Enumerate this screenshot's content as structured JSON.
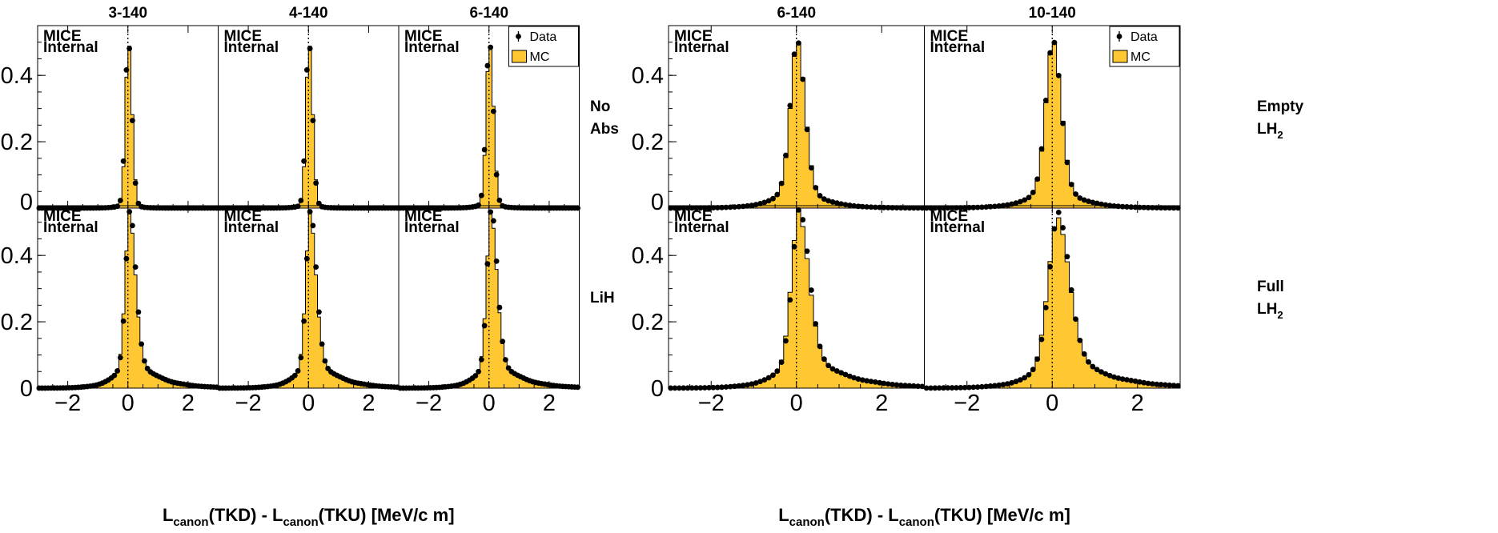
{
  "chart_data": {
    "type": "bar",
    "xlabel": {
      "left_part1": "L",
      "left_sub": "canon",
      "left_part2": "(TKD) - L",
      "right_sub": "canon",
      "right_part2": "(TKU) [MeV/c m]"
    },
    "xlim": [
      -3,
      3
    ],
    "ylim": [
      0,
      0.55
    ],
    "xticks": [
      -2,
      0,
      2
    ],
    "xtick_labels": [
      "−2",
      "0",
      "2"
    ],
    "yticks": [
      0,
      0.2,
      0.4
    ],
    "ytick_labels": [
      "0",
      "0.2",
      "0.4"
    ],
    "watermark": [
      "MICE",
      "Internal"
    ],
    "legend": {
      "data_label": "Data",
      "mc_label": "MC",
      "placement": "top-right"
    },
    "colors": {
      "mc_fill": "#ffc832",
      "mc_line": "#000000",
      "data_marker": "#000000"
    },
    "row_labels": {
      "left": [
        {
          "lines": [
            "No",
            "Abs"
          ]
        },
        {
          "lines": [
            "LiH"
          ]
        }
      ],
      "right": [
        {
          "lines": [
            "Empty",
            "LH"
          ],
          "sub": "2"
        },
        {
          "lines": [
            "Full",
            "LH"
          ],
          "sub": "2"
        }
      ]
    },
    "groups": [
      {
        "columns": [
          "3-140",
          "4-140",
          "6-140"
        ],
        "rows": [
          {
            "absorber": "No Abs",
            "shapes": [
              {
                "peak": 0.505,
                "peak_x": 0.02,
                "sigma_l": 0.1,
                "sigma_r": 0.12,
                "tail_amp": 0.02,
                "tail_w": 0.25,
                "asym": 0.0
              },
              {
                "peak": 0.505,
                "peak_x": 0.02,
                "sigma_l": 0.1,
                "sigma_r": 0.12,
                "tail_amp": 0.02,
                "tail_w": 0.25,
                "asym": 0.0
              },
              {
                "peak": 0.505,
                "peak_x": 0.02,
                "sigma_l": 0.11,
                "sigma_r": 0.13,
                "tail_amp": 0.025,
                "tail_w": 0.28,
                "asym": 0.0
              }
            ]
          },
          {
            "absorber": "LiH",
            "shapes": [
              {
                "peak": 0.53,
                "peak_x": 0.05,
                "sigma_l": 0.14,
                "sigma_r": 0.2,
                "tail_amp": 0.12,
                "tail_w": 0.55,
                "asym": 0.4
              },
              {
                "peak": 0.53,
                "peak_x": 0.05,
                "sigma_l": 0.14,
                "sigma_r": 0.2,
                "tail_amp": 0.12,
                "tail_w": 0.55,
                "asym": 0.4
              },
              {
                "peak": 0.535,
                "peak_x": 0.06,
                "sigma_l": 0.14,
                "sigma_r": 0.2,
                "tail_amp": 0.12,
                "tail_w": 0.55,
                "asym": 0.4
              }
            ]
          }
        ]
      },
      {
        "columns": [
          "6-140",
          "10-140"
        ],
        "rows": [
          {
            "absorber": "Empty LH2",
            "shapes": [
              {
                "peak": 0.51,
                "peak_x": 0.02,
                "sigma_l": 0.16,
                "sigma_r": 0.18,
                "tail_amp": 0.1,
                "tail_w": 0.45,
                "asym": 0.1
              },
              {
                "peak": 0.51,
                "peak_x": 0.02,
                "sigma_l": 0.17,
                "sigma_r": 0.19,
                "tail_amp": 0.1,
                "tail_w": 0.48,
                "asym": 0.1
              }
            ]
          },
          {
            "absorber": "Full LH2",
            "shapes": [
              {
                "peak": 0.535,
                "peak_x": 0.05,
                "sigma_l": 0.17,
                "sigma_r": 0.24,
                "tail_amp": 0.14,
                "tail_w": 0.6,
                "asym": 0.45
              },
              {
                "peak": 0.52,
                "peak_x": 0.12,
                "sigma_l": 0.22,
                "sigma_r": 0.28,
                "tail_amp": 0.14,
                "tail_w": 0.65,
                "asym": 0.45
              }
            ]
          }
        ]
      }
    ]
  }
}
